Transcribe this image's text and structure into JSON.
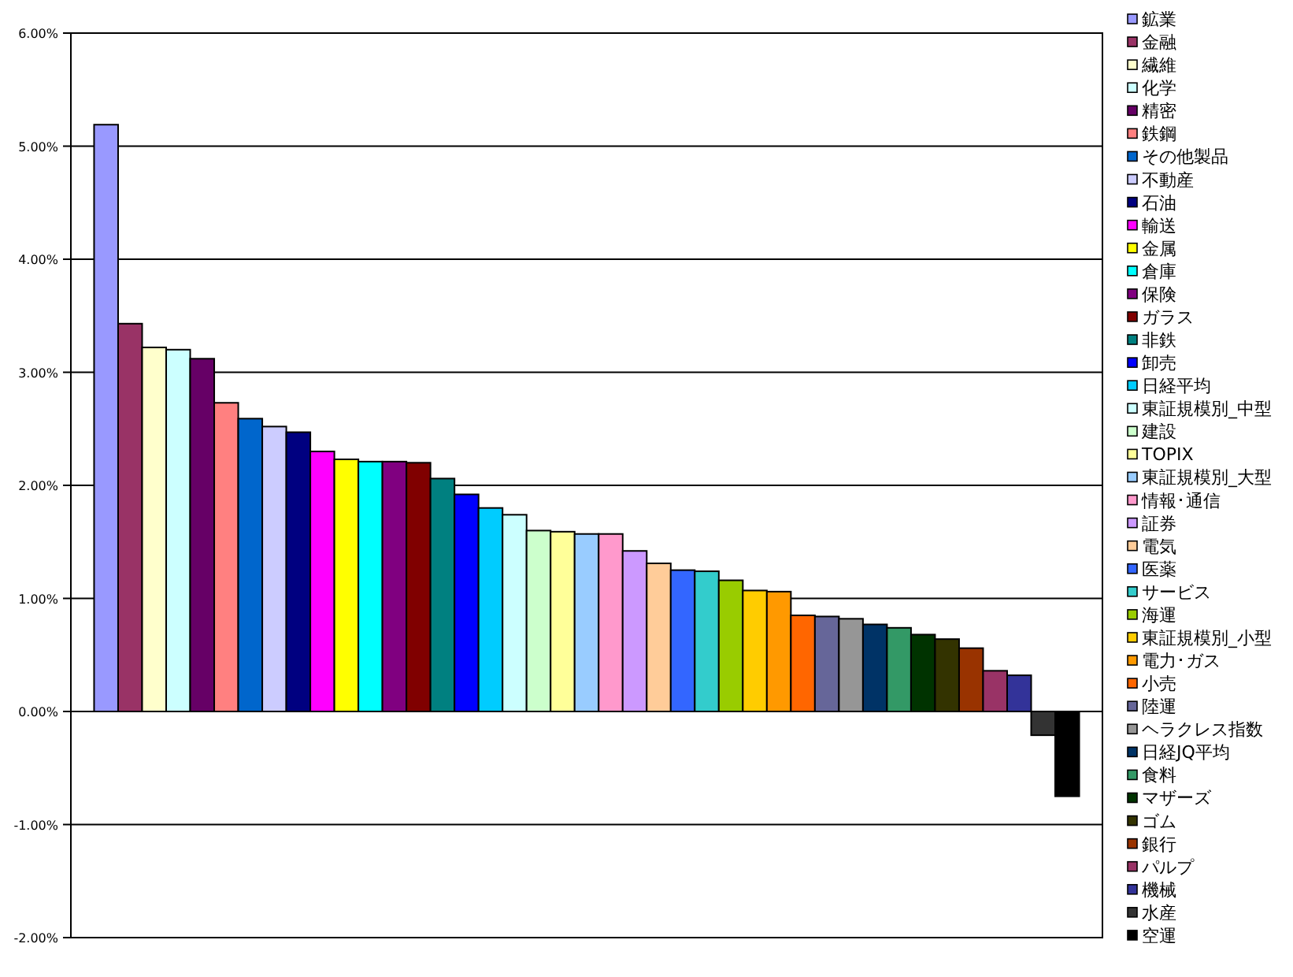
{
  "chart_data": {
    "type": "bar",
    "categories": [
      null
    ],
    "ylim": [
      -2,
      6
    ],
    "yticks": [
      {
        "value": -2,
        "label": "-2.00%"
      },
      {
        "value": -1,
        "label": "-1.00%"
      },
      {
        "value": 0,
        "label": "0.00%"
      },
      {
        "value": 1,
        "label": "1.00%"
      },
      {
        "value": 2,
        "label": "2.00%"
      },
      {
        "value": 3,
        "label": "3.00%"
      },
      {
        "value": 4,
        "label": "4.00%"
      },
      {
        "value": 5,
        "label": "5.00%"
      },
      {
        "value": 6,
        "label": "6.00%"
      }
    ],
    "grid": "y",
    "legend": "right",
    "series": [
      {
        "name": "鉱業",
        "color": "#9999ff",
        "values": [
          5.19
        ]
      },
      {
        "name": "金融",
        "color": "#993366",
        "values": [
          3.43
        ]
      },
      {
        "name": "繊維",
        "color": "#ffffcc",
        "values": [
          3.22
        ]
      },
      {
        "name": "化学",
        "color": "#ccffff",
        "values": [
          3.2
        ]
      },
      {
        "name": "精密",
        "color": "#660066",
        "values": [
          3.12
        ]
      },
      {
        "name": "鉄鋼",
        "color": "#ff8080",
        "values": [
          2.73
        ]
      },
      {
        "name": "その他製品",
        "color": "#0066cc",
        "values": [
          2.59
        ]
      },
      {
        "name": "不動産",
        "color": "#ccccff",
        "values": [
          2.52
        ]
      },
      {
        "name": "石油",
        "color": "#000080",
        "values": [
          2.47
        ]
      },
      {
        "name": "輸送",
        "color": "#ff00ff",
        "values": [
          2.3
        ]
      },
      {
        "name": "金属",
        "color": "#ffff00",
        "values": [
          2.23
        ]
      },
      {
        "name": "倉庫",
        "color": "#00ffff",
        "values": [
          2.21
        ]
      },
      {
        "name": "保険",
        "color": "#800080",
        "values": [
          2.21
        ]
      },
      {
        "name": "ガラス",
        "color": "#800000",
        "values": [
          2.2
        ]
      },
      {
        "name": "非鉄",
        "color": "#008080",
        "values": [
          2.06
        ]
      },
      {
        "name": "卸売",
        "color": "#0000ff",
        "values": [
          1.92
        ]
      },
      {
        "name": "日経平均",
        "color": "#00ccff",
        "values": [
          1.8
        ]
      },
      {
        "name": "東証規模別_中型",
        "color": "#ccffff",
        "values": [
          1.74
        ]
      },
      {
        "name": "建設",
        "color": "#ccffcc",
        "values": [
          1.6
        ]
      },
      {
        "name": "TOPIX",
        "color": "#ffff99",
        "values": [
          1.59
        ]
      },
      {
        "name": "東証規模別_大型",
        "color": "#99ccff",
        "values": [
          1.57
        ]
      },
      {
        "name": "情報･通信",
        "color": "#ff99cc",
        "values": [
          1.57
        ]
      },
      {
        "name": "証券",
        "color": "#cc99ff",
        "values": [
          1.42
        ]
      },
      {
        "name": "電気",
        "color": "#ffcc99",
        "values": [
          1.31
        ]
      },
      {
        "name": "医薬",
        "color": "#3366ff",
        "values": [
          1.25
        ]
      },
      {
        "name": "サービス",
        "color": "#33cccc",
        "values": [
          1.24
        ]
      },
      {
        "name": "海運",
        "color": "#99cc00",
        "values": [
          1.16
        ]
      },
      {
        "name": "東証規模別_小型",
        "color": "#ffcc00",
        "values": [
          1.07
        ]
      },
      {
        "name": "電力･ガス",
        "color": "#ff9900",
        "values": [
          1.06
        ]
      },
      {
        "name": "小売",
        "color": "#ff6600",
        "values": [
          0.85
        ]
      },
      {
        "name": "陸運",
        "color": "#666699",
        "values": [
          0.84
        ]
      },
      {
        "name": "ヘラクレス指数",
        "color": "#969696",
        "values": [
          0.82
        ]
      },
      {
        "name": "日経JQ平均",
        "color": "#003366",
        "values": [
          0.77
        ]
      },
      {
        "name": "食料",
        "color": "#339966",
        "values": [
          0.74
        ]
      },
      {
        "name": "マザーズ",
        "color": "#003300",
        "values": [
          0.68
        ]
      },
      {
        "name": "ゴム",
        "color": "#333300",
        "values": [
          0.64
        ]
      },
      {
        "name": "銀行",
        "color": "#993300",
        "values": [
          0.56
        ]
      },
      {
        "name": "パルプ",
        "color": "#993366",
        "values": [
          0.36
        ]
      },
      {
        "name": "機械",
        "color": "#333399",
        "values": [
          0.32
        ]
      },
      {
        "name": "水産",
        "color": "#333333",
        "values": [
          -0.21
        ]
      },
      {
        "name": "空運",
        "color": "#000000",
        "values": [
          -0.75
        ]
      }
    ]
  }
}
